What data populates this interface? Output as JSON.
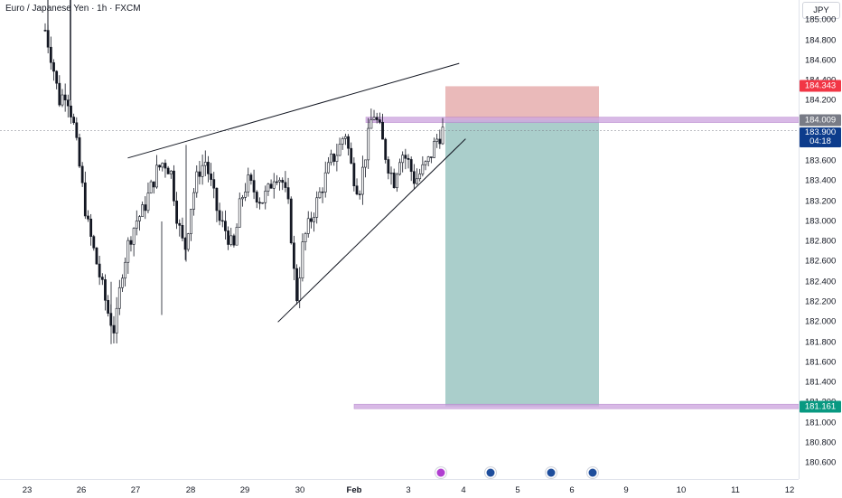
{
  "chart_title": "Euro / Japanese Yen · 1h · FXCM",
  "currency_button": "JPY",
  "colors": {
    "up": "#131722",
    "down": "#131722",
    "stop_zone": "#e8b2b2",
    "target_zone": "#a5cbc8",
    "stop_badge": "#f23645",
    "target_badge": "#089981",
    "level_band": "#cfa8e0",
    "current_badge": "#0d3c8c",
    "level_badge": "#787b86"
  },
  "price_axis": {
    "min": 180.44,
    "max": 185.2,
    "ticks": [
      "185.000",
      "184.800",
      "184.600",
      "184.400",
      "184.200",
      "184.000",
      "183.800",
      "183.600",
      "183.400",
      "183.200",
      "183.000",
      "182.800",
      "182.600",
      "182.400",
      "182.200",
      "182.000",
      "181.800",
      "181.600",
      "181.400",
      "181.200",
      "181.000",
      "180.800",
      "180.600"
    ],
    "tick_values": [
      185.0,
      184.8,
      184.6,
      184.4,
      184.2,
      184.0,
      183.8,
      183.6,
      183.4,
      183.2,
      183.0,
      182.8,
      182.6,
      182.4,
      182.2,
      182.0,
      181.8,
      181.6,
      181.4,
      181.2,
      181.0,
      180.8,
      180.6
    ]
  },
  "badges": {
    "stop_loss": "184.343",
    "level": "184.009",
    "current_price": "183.900",
    "countdown": "04:18",
    "take_profit": "181.161"
  },
  "levels": {
    "stop_loss": 184.343,
    "level": 184.009,
    "entry": 184.009,
    "current": 183.9,
    "take_profit": 181.161
  },
  "time_axis": {
    "labels": [
      "23",
      "26",
      "27",
      "28",
      "29",
      "30",
      "Feb",
      "3",
      "4",
      "5",
      "6",
      "9",
      "10",
      "11",
      "12"
    ],
    "bold": [
      "Feb"
    ]
  },
  "chart_data": {
    "type": "candlestick",
    "series_close_path": [
      184.9,
      184.6,
      184.2,
      184.3,
      184.0,
      183.5,
      183.0,
      182.7,
      182.4,
      182.1,
      181.9,
      182.5,
      182.8,
      183.0,
      183.1,
      183.3,
      183.5,
      183.6,
      183.5,
      183.0,
      182.7,
      183.2,
      183.5,
      183.6,
      183.3,
      183.0,
      182.9,
      182.7,
      183.2,
      183.4,
      183.3,
      183.2,
      183.3,
      183.5,
      183.4,
      183.1,
      182.2,
      182.8,
      183.0,
      183.2,
      183.4,
      183.6,
      183.7,
      183.9,
      183.5,
      183.3,
      183.7,
      184.1,
      183.9,
      183.6,
      183.4,
      183.7,
      183.6,
      183.4,
      183.5,
      183.6,
      183.8,
      183.9
    ],
    "overlays": [
      {
        "name": "resistance-trendline",
        "from": {
          "t": 0.16,
          "p": 183.63
        },
        "to": {
          "t": 0.575,
          "p": 184.57
        }
      },
      {
        "name": "support-trendline",
        "from": {
          "t": 0.348,
          "p": 182.0
        },
        "to": {
          "t": 0.583,
          "p": 183.82
        }
      }
    ]
  }
}
